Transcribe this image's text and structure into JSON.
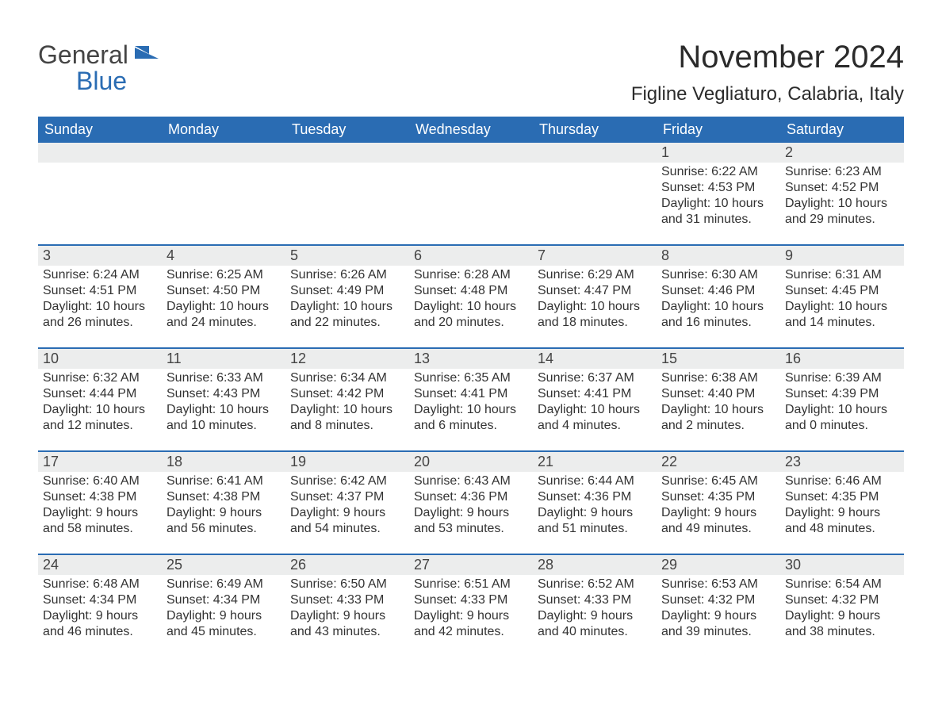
{
  "logo": {
    "text1": "General",
    "text2": "Blue",
    "flag_color": "#2a6cb3"
  },
  "title": "November 2024",
  "location": "Figline Vegliaturo, Calabria, Italy",
  "colors": {
    "header_bg": "#2a6cb3",
    "header_text": "#ffffff",
    "daynum_bg": "#eceded",
    "text": "#333333",
    "border": "#2a6cb3",
    "background": "#ffffff"
  },
  "typography": {
    "title_fontsize": 40,
    "location_fontsize": 24,
    "dow_fontsize": 18,
    "daynum_fontsize": 18,
    "body_fontsize": 16
  },
  "days_of_week": [
    "Sunday",
    "Monday",
    "Tuesday",
    "Wednesday",
    "Thursday",
    "Friday",
    "Saturday"
  ],
  "weeks": [
    [
      null,
      null,
      null,
      null,
      null,
      {
        "n": "1",
        "sunrise": "Sunrise: 6:22 AM",
        "sunset": "Sunset: 4:53 PM",
        "daylight": "Daylight: 10 hours and 31 minutes."
      },
      {
        "n": "2",
        "sunrise": "Sunrise: 6:23 AM",
        "sunset": "Sunset: 4:52 PM",
        "daylight": "Daylight: 10 hours and 29 minutes."
      }
    ],
    [
      {
        "n": "3",
        "sunrise": "Sunrise: 6:24 AM",
        "sunset": "Sunset: 4:51 PM",
        "daylight": "Daylight: 10 hours and 26 minutes."
      },
      {
        "n": "4",
        "sunrise": "Sunrise: 6:25 AM",
        "sunset": "Sunset: 4:50 PM",
        "daylight": "Daylight: 10 hours and 24 minutes."
      },
      {
        "n": "5",
        "sunrise": "Sunrise: 6:26 AM",
        "sunset": "Sunset: 4:49 PM",
        "daylight": "Daylight: 10 hours and 22 minutes."
      },
      {
        "n": "6",
        "sunrise": "Sunrise: 6:28 AM",
        "sunset": "Sunset: 4:48 PM",
        "daylight": "Daylight: 10 hours and 20 minutes."
      },
      {
        "n": "7",
        "sunrise": "Sunrise: 6:29 AM",
        "sunset": "Sunset: 4:47 PM",
        "daylight": "Daylight: 10 hours and 18 minutes."
      },
      {
        "n": "8",
        "sunrise": "Sunrise: 6:30 AM",
        "sunset": "Sunset: 4:46 PM",
        "daylight": "Daylight: 10 hours and 16 minutes."
      },
      {
        "n": "9",
        "sunrise": "Sunrise: 6:31 AM",
        "sunset": "Sunset: 4:45 PM",
        "daylight": "Daylight: 10 hours and 14 minutes."
      }
    ],
    [
      {
        "n": "10",
        "sunrise": "Sunrise: 6:32 AM",
        "sunset": "Sunset: 4:44 PM",
        "daylight": "Daylight: 10 hours and 12 minutes."
      },
      {
        "n": "11",
        "sunrise": "Sunrise: 6:33 AM",
        "sunset": "Sunset: 4:43 PM",
        "daylight": "Daylight: 10 hours and 10 minutes."
      },
      {
        "n": "12",
        "sunrise": "Sunrise: 6:34 AM",
        "sunset": "Sunset: 4:42 PM",
        "daylight": "Daylight: 10 hours and 8 minutes."
      },
      {
        "n": "13",
        "sunrise": "Sunrise: 6:35 AM",
        "sunset": "Sunset: 4:41 PM",
        "daylight": "Daylight: 10 hours and 6 minutes."
      },
      {
        "n": "14",
        "sunrise": "Sunrise: 6:37 AM",
        "sunset": "Sunset: 4:41 PM",
        "daylight": "Daylight: 10 hours and 4 minutes."
      },
      {
        "n": "15",
        "sunrise": "Sunrise: 6:38 AM",
        "sunset": "Sunset: 4:40 PM",
        "daylight": "Daylight: 10 hours and 2 minutes."
      },
      {
        "n": "16",
        "sunrise": "Sunrise: 6:39 AM",
        "sunset": "Sunset: 4:39 PM",
        "daylight": "Daylight: 10 hours and 0 minutes."
      }
    ],
    [
      {
        "n": "17",
        "sunrise": "Sunrise: 6:40 AM",
        "sunset": "Sunset: 4:38 PM",
        "daylight": "Daylight: 9 hours and 58 minutes."
      },
      {
        "n": "18",
        "sunrise": "Sunrise: 6:41 AM",
        "sunset": "Sunset: 4:38 PM",
        "daylight": "Daylight: 9 hours and 56 minutes."
      },
      {
        "n": "19",
        "sunrise": "Sunrise: 6:42 AM",
        "sunset": "Sunset: 4:37 PM",
        "daylight": "Daylight: 9 hours and 54 minutes."
      },
      {
        "n": "20",
        "sunrise": "Sunrise: 6:43 AM",
        "sunset": "Sunset: 4:36 PM",
        "daylight": "Daylight: 9 hours and 53 minutes."
      },
      {
        "n": "21",
        "sunrise": "Sunrise: 6:44 AM",
        "sunset": "Sunset: 4:36 PM",
        "daylight": "Daylight: 9 hours and 51 minutes."
      },
      {
        "n": "22",
        "sunrise": "Sunrise: 6:45 AM",
        "sunset": "Sunset: 4:35 PM",
        "daylight": "Daylight: 9 hours and 49 minutes."
      },
      {
        "n": "23",
        "sunrise": "Sunrise: 6:46 AM",
        "sunset": "Sunset: 4:35 PM",
        "daylight": "Daylight: 9 hours and 48 minutes."
      }
    ],
    [
      {
        "n": "24",
        "sunrise": "Sunrise: 6:48 AM",
        "sunset": "Sunset: 4:34 PM",
        "daylight": "Daylight: 9 hours and 46 minutes."
      },
      {
        "n": "25",
        "sunrise": "Sunrise: 6:49 AM",
        "sunset": "Sunset: 4:34 PM",
        "daylight": "Daylight: 9 hours and 45 minutes."
      },
      {
        "n": "26",
        "sunrise": "Sunrise: 6:50 AM",
        "sunset": "Sunset: 4:33 PM",
        "daylight": "Daylight: 9 hours and 43 minutes."
      },
      {
        "n": "27",
        "sunrise": "Sunrise: 6:51 AM",
        "sunset": "Sunset: 4:33 PM",
        "daylight": "Daylight: 9 hours and 42 minutes."
      },
      {
        "n": "28",
        "sunrise": "Sunrise: 6:52 AM",
        "sunset": "Sunset: 4:33 PM",
        "daylight": "Daylight: 9 hours and 40 minutes."
      },
      {
        "n": "29",
        "sunrise": "Sunrise: 6:53 AM",
        "sunset": "Sunset: 4:32 PM",
        "daylight": "Daylight: 9 hours and 39 minutes."
      },
      {
        "n": "30",
        "sunrise": "Sunrise: 6:54 AM",
        "sunset": "Sunset: 4:32 PM",
        "daylight": "Daylight: 9 hours and 38 minutes."
      }
    ]
  ]
}
